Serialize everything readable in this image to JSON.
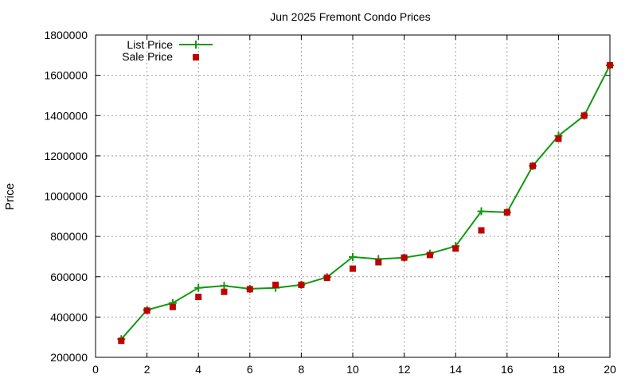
{
  "chart_data": {
    "type": "line",
    "title": "Jun 2025 Fremont Condo Prices",
    "xlabel": "",
    "ylabel": "Price",
    "xlim": [
      0,
      20
    ],
    "ylim": [
      200000,
      1800000
    ],
    "xticks": [
      "0",
      "2",
      "4",
      "6",
      "8",
      "10",
      "12",
      "14",
      "16",
      "18",
      "20"
    ],
    "yticks": [
      "200000",
      "400000",
      "600000",
      "800000",
      "1000000",
      "1200000",
      "1400000",
      "1600000",
      "1800000"
    ],
    "grid": true,
    "legend_position": "top-left",
    "series": [
      {
        "name": "List Price",
        "kind": "line-with-cross-markers",
        "color": "#109910",
        "x": [
          1,
          2,
          3,
          4,
          5,
          6,
          7,
          8,
          9,
          10,
          11,
          12,
          13,
          14,
          15,
          16,
          17,
          18,
          19,
          20
        ],
        "y": [
          290000,
          435000,
          470000,
          545000,
          555000,
          540000,
          545000,
          560000,
          598000,
          698000,
          688000,
          695000,
          715000,
          752000,
          925000,
          920000,
          1150000,
          1300000,
          1400000,
          1650000
        ]
      },
      {
        "name": "Sale Price",
        "kind": "square-markers",
        "color": "#c00000",
        "x": [
          1,
          2,
          3,
          4,
          5,
          6,
          7,
          8,
          9,
          10,
          11,
          12,
          13,
          14,
          15,
          16,
          17,
          18,
          19,
          20
        ],
        "y": [
          282000,
          432000,
          450000,
          500000,
          525000,
          538000,
          560000,
          560000,
          595000,
          640000,
          672000,
          695000,
          708000,
          740000,
          830000,
          920000,
          1150000,
          1285000,
          1400000,
          1650000
        ]
      }
    ]
  }
}
